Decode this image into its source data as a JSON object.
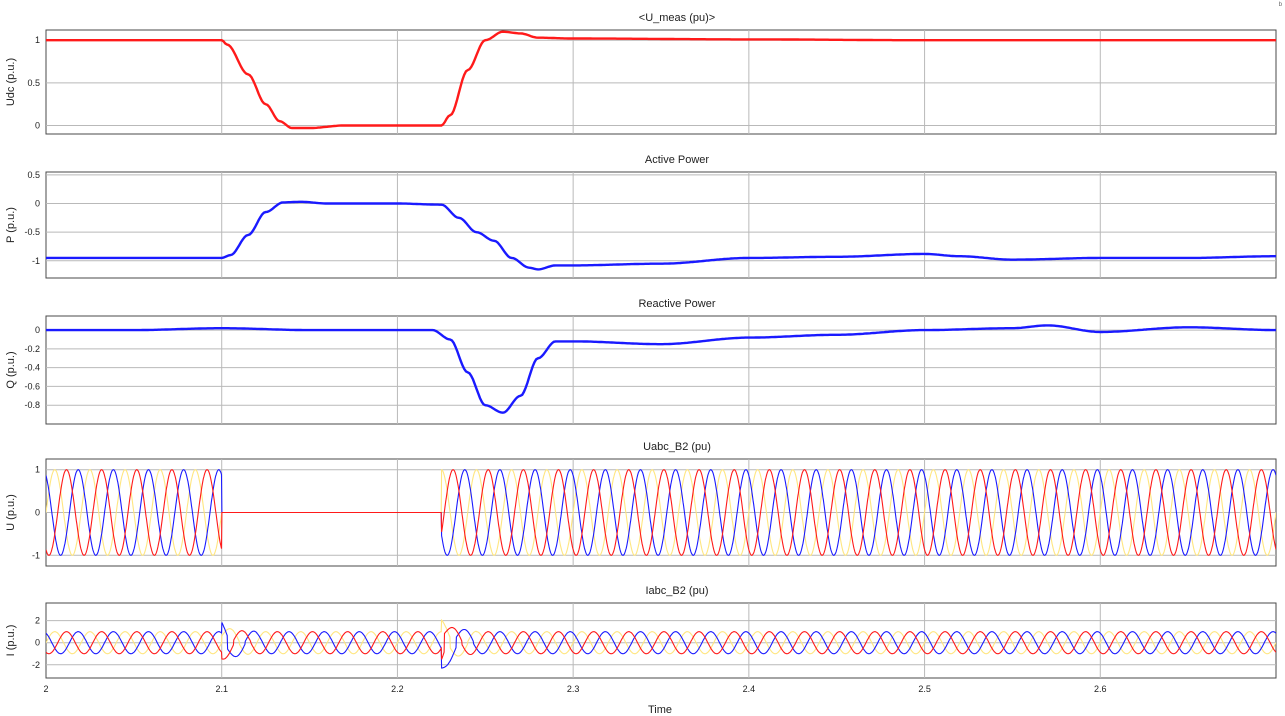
{
  "window": {
    "corner_mark": "ᵇ"
  },
  "colors": {
    "red": "#ff1a1a",
    "blue": "#1a1aff",
    "yellow": "#ffe680",
    "grid": "#b9b9b9",
    "axis": "#4a4a4a"
  },
  "x_axis": {
    "label": "Time",
    "ticks": [
      2,
      2.1,
      2.2,
      2.3,
      2.4,
      2.5,
      2.6
    ],
    "tick_labels": [
      "2",
      "2.1",
      "2.2",
      "2.3",
      "2.4",
      "2.5",
      "2.6"
    ],
    "range": [
      2,
      2.7
    ]
  },
  "chart_data": [
    {
      "type": "line",
      "title": "<U_meas (pu)>",
      "ylabel": "Udc (p.u.)",
      "ylim": [
        -0.1,
        1.12
      ],
      "yticks": [
        0,
        0.5,
        1
      ],
      "ytick_labels": [
        "0",
        "0.5",
        "1"
      ],
      "grid": true,
      "series": [
        {
          "color": "#ff1a1a",
          "width": 2,
          "x": [
            2.0,
            2.1,
            2.103,
            2.115,
            2.125,
            2.133,
            2.14,
            2.15,
            2.17,
            2.2,
            2.225,
            2.23,
            2.24,
            2.25,
            2.26,
            2.27,
            2.28,
            2.3,
            2.4,
            2.5,
            2.6,
            2.7
          ],
          "y": [
            1.0,
            1.0,
            0.95,
            0.6,
            0.25,
            0.05,
            -0.03,
            -0.03,
            0.0,
            0.0,
            0.0,
            0.12,
            0.65,
            1.0,
            1.1,
            1.08,
            1.03,
            1.02,
            1.01,
            1.0,
            1.0,
            1.0
          ]
        }
      ]
    },
    {
      "type": "line",
      "title": "Active Power",
      "ylabel": "P (p.u.)",
      "ylim": [
        -1.3,
        0.55
      ],
      "yticks": [
        -1,
        -0.5,
        0,
        0.5
      ],
      "ytick_labels": [
        "-1",
        "-0.5",
        "0",
        "0.5"
      ],
      "grid": true,
      "series": [
        {
          "color": "#1a1aff",
          "width": 2,
          "x": [
            2.0,
            2.1,
            2.105,
            2.115,
            2.125,
            2.135,
            2.145,
            2.16,
            2.2,
            2.225,
            2.235,
            2.245,
            2.255,
            2.265,
            2.275,
            2.28,
            2.29,
            2.3,
            2.35,
            2.4,
            2.45,
            2.5,
            2.52,
            2.55,
            2.6,
            2.65,
            2.7
          ],
          "y": [
            -0.95,
            -0.95,
            -0.9,
            -0.55,
            -0.15,
            0.02,
            0.03,
            0.0,
            0.0,
            -0.02,
            -0.25,
            -0.5,
            -0.65,
            -0.95,
            -1.12,
            -1.15,
            -1.08,
            -1.08,
            -1.05,
            -0.95,
            -0.93,
            -0.88,
            -0.92,
            -0.98,
            -0.95,
            -0.95,
            -0.92
          ]
        }
      ]
    },
    {
      "type": "line",
      "title": "Reactive Power",
      "ylabel": "Q (p.u.)",
      "ylim": [
        -1.0,
        0.15
      ],
      "yticks": [
        0,
        -0.2,
        -0.4,
        -0.6,
        -0.8
      ],
      "ytick_labels": [
        "0",
        "-0.2",
        "-0.4",
        "-0.6",
        "-0.8"
      ],
      "grid": true,
      "series": [
        {
          "color": "#1a1aff",
          "width": 2,
          "x": [
            2.0,
            2.05,
            2.1,
            2.15,
            2.2,
            2.22,
            2.23,
            2.24,
            2.25,
            2.26,
            2.27,
            2.28,
            2.29,
            2.3,
            2.35,
            2.4,
            2.45,
            2.5,
            2.55,
            2.57,
            2.6,
            2.65,
            2.7
          ],
          "y": [
            0.0,
            0.0,
            0.02,
            0.0,
            0.0,
            0.0,
            -0.1,
            -0.45,
            -0.8,
            -0.88,
            -0.7,
            -0.3,
            -0.12,
            -0.12,
            -0.15,
            -0.08,
            -0.05,
            0.0,
            0.02,
            0.05,
            -0.02,
            0.03,
            0.0
          ]
        }
      ]
    },
    {
      "type": "line",
      "title": "Uabc_B2  (pu)",
      "ylabel": "U (p.u.)",
      "ylim": [
        -1.25,
        1.25
      ],
      "yticks": [
        -1,
        0,
        1
      ],
      "ytick_labels": [
        "-1",
        "0",
        "1"
      ],
      "grid": true,
      "waveform": {
        "kind": "three-phase",
        "frequency_hz": 50,
        "segments": [
          {
            "from": 2.0,
            "to": 2.1,
            "amplitude": 1.0
          },
          {
            "from": 2.1,
            "to": 2.225,
            "amplitude": 0.0
          },
          {
            "from": 2.225,
            "to": 2.7,
            "amplitude": 1.0
          }
        ],
        "phase_colors": [
          "#ffe680",
          "#1a1aff",
          "#ff1a1a"
        ]
      }
    },
    {
      "type": "line",
      "title": "Iabc_B2  (pu)",
      "ylabel": "I (p.u.)",
      "ylim": [
        -3.2,
        3.6
      ],
      "yticks": [
        -2,
        0,
        2
      ],
      "ytick_labels": [
        "-2",
        "0",
        "2"
      ],
      "grid": true,
      "waveform": {
        "kind": "three-phase",
        "frequency_hz": 50,
        "segments": [
          {
            "from": 2.0,
            "to": 2.7,
            "amplitude": 1.0
          }
        ],
        "transients": [
          {
            "at": 2.1,
            "peak": 2.0
          },
          {
            "at": 2.225,
            "peak": 2.8
          }
        ],
        "phase_colors": [
          "#ffe680",
          "#1a1aff",
          "#ff1a1a"
        ]
      }
    }
  ]
}
